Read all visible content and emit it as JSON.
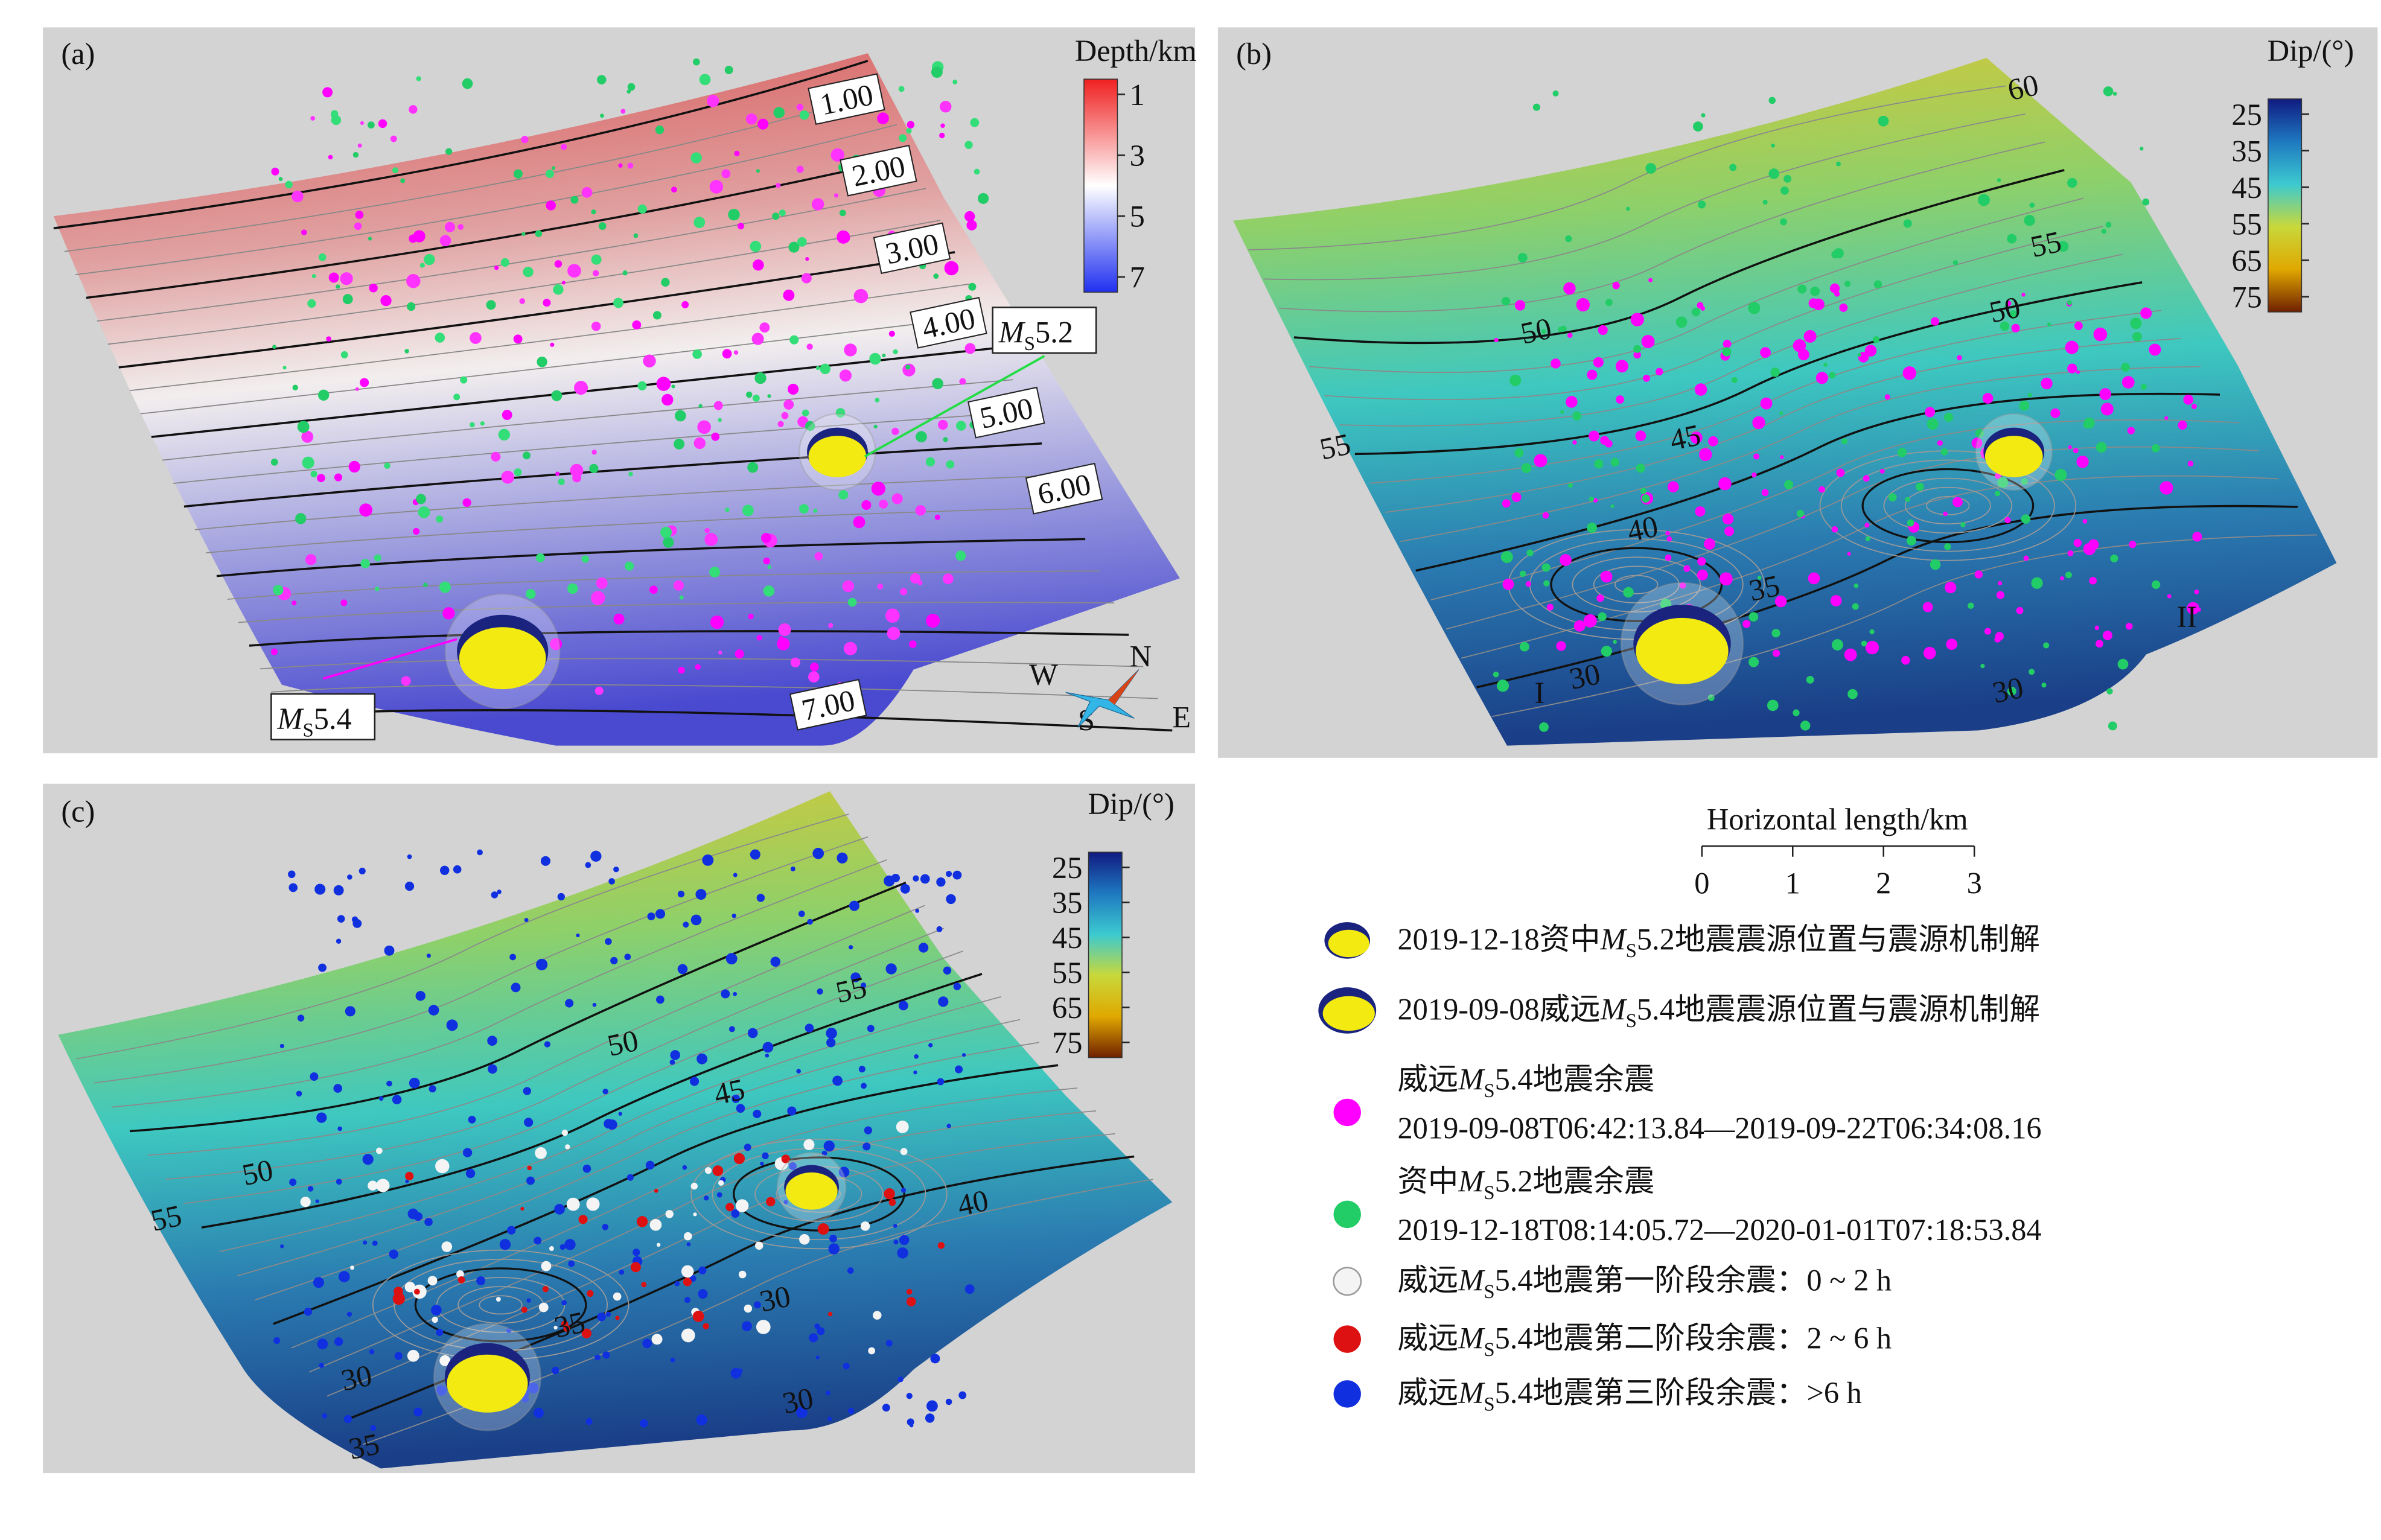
{
  "panels": [
    {
      "label": "(a)",
      "colorbar": {
        "title": "Depth/km",
        "ticks": [
          1,
          3,
          5,
          7
        ]
      },
      "contour_labels": [
        "1.00",
        "2.00",
        "3.00",
        "4.00",
        "5.00",
        "6.00",
        "7.00"
      ],
      "callouts": [
        {
          "symbol": "M",
          "sub": "S",
          "magnitude": "5.2"
        },
        {
          "symbol": "M",
          "sub": "S",
          "magnitude": "5.4"
        }
      ],
      "compass": [
        "N",
        "W",
        "S",
        "E"
      ]
    },
    {
      "label": "(b)",
      "colorbar": {
        "title": "Dip/(°)",
        "ticks": [
          25,
          35,
          45,
          55,
          65,
          75
        ]
      },
      "contour_labels": [
        "60",
        "55",
        "50",
        "50",
        "55",
        "45",
        "40",
        "35",
        "30",
        "30"
      ],
      "zones": [
        "I",
        "II"
      ]
    },
    {
      "label": "(c)",
      "colorbar": {
        "title": "Dip/(°)",
        "ticks": [
          25,
          35,
          45,
          55,
          65,
          75
        ]
      },
      "contour_labels": [
        "55",
        "50",
        "45",
        "40",
        "50",
        "55",
        "35",
        "30",
        "30",
        "30",
        "35"
      ]
    }
  ],
  "scale_bar": {
    "title": "Horizontal length/km",
    "ticks": [
      0,
      1,
      2,
      3
    ]
  },
  "legend": [
    {
      "parts": [
        "2019-12-18资中",
        "M",
        "S",
        "5.2地震震源位置与震源机制解"
      ]
    },
    {
      "parts": [
        "2019-09-08威远",
        "M",
        "S",
        "5.4地震震源位置与震源机制解"
      ]
    },
    {
      "parts": [
        "威远",
        "M",
        "S",
        "5.4地震余震"
      ],
      "line2": "2019-09-08T06:42:13.84—2019-09-22T06:34:08.16"
    },
    {
      "parts": [
        "资中",
        "M",
        "S",
        "5.2地震余震"
      ],
      "line2": "2019-12-18T08:14:05.72—2020-01-01T07:18:53.84"
    },
    {
      "parts": [
        "威远",
        "M",
        "S",
        "5.4地震第一阶段余震：0 ~ 2 h"
      ]
    },
    {
      "parts": [
        "威远",
        "M",
        "S",
        "5.4地震第二阶段余震：2 ~ 6 h"
      ]
    },
    {
      "parts": [
        "威远",
        "M",
        "S",
        "5.4地震第三阶段余震：>6 h"
      ]
    }
  ]
}
